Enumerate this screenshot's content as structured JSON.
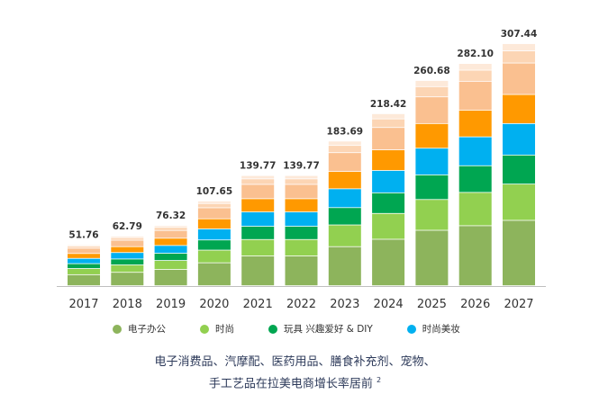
{
  "chart_data": {
    "type": "bar",
    "stacked": true,
    "categories": [
      "2017",
      "2018",
      "2019",
      "2020",
      "2021",
      "2022",
      "2023",
      "2024",
      "2025",
      "2026",
      "2027"
    ],
    "totals": [
      "51.76",
      "62.79",
      "76.32",
      "107.65",
      "139.77",
      "139.77",
      "183.69",
      "218.42",
      "260.68",
      "282.10",
      "307.44"
    ],
    "total_values": [
      51.76,
      62.79,
      76.32,
      107.65,
      139.77,
      139.77,
      183.69,
      218.42,
      260.68,
      282.1,
      307.44
    ],
    "series": [
      {
        "name": "电子办公",
        "color": "#8db45c",
        "values": [
          14.0,
          17.0,
          20.6,
          29.1,
          37.7,
          37.7,
          49.6,
          59.0,
          70.4,
          76.2,
          83.0
        ]
      },
      {
        "name": "时尚",
        "color": "#92d050",
        "values": [
          7.8,
          9.4,
          11.4,
          16.1,
          21.0,
          21.0,
          27.6,
          32.8,
          39.1,
          42.3,
          46.1
        ]
      },
      {
        "name": "玩具 兴趣爱好 & DIY",
        "color": "#00a651",
        "values": [
          6.2,
          7.5,
          9.2,
          12.9,
          16.8,
          16.8,
          22.0,
          26.2,
          31.3,
          33.9,
          36.9
        ]
      },
      {
        "name": "时尚美妆",
        "color": "#00b0f0",
        "values": [
          6.7,
          8.2,
          9.9,
          14.0,
          18.2,
          18.2,
          23.9,
          28.4,
          33.9,
          36.7,
          40.0
        ]
      },
      {
        "name": "",
        "color": "#ff9900",
        "values": [
          6.2,
          7.5,
          9.2,
          12.9,
          16.8,
          16.8,
          22.0,
          26.2,
          31.3,
          33.9,
          36.9
        ]
      },
      {
        "name": "",
        "color": "#fac090",
        "values": [
          6.7,
          8.2,
          9.9,
          14.0,
          18.2,
          18.2,
          23.9,
          28.4,
          33.9,
          36.7,
          40.0
        ]
      },
      {
        "name": "",
        "color": "#fcd5b4",
        "values": [
          2.6,
          3.1,
          3.8,
          5.4,
          7.0,
          7.0,
          9.2,
          10.9,
          13.0,
          14.1,
          15.4
        ]
      },
      {
        "name": "",
        "color": "#fde9d9",
        "values": [
          1.6,
          1.9,
          2.3,
          3.2,
          4.2,
          4.2,
          5.5,
          6.6,
          7.8,
          8.5,
          9.2
        ]
      }
    ],
    "ylim": [
      0,
      307.44
    ],
    "grid": false,
    "legend_position": "bottom"
  },
  "legend": [
    {
      "label": "电子办公",
      "color": "#8db45c"
    },
    {
      "label": "时尚",
      "color": "#92d050"
    },
    {
      "label": "玩具 兴趣爱好 & DIY",
      "color": "#00a651"
    },
    {
      "label": "时尚美妆",
      "color": "#00b0f0"
    }
  ],
  "caption": {
    "line1": "电子消费品、汽摩配、医药用品、膳食补充剂、宠物、",
    "line2": "手工艺品在拉美电商增长率居前",
    "footnote": "2"
  }
}
